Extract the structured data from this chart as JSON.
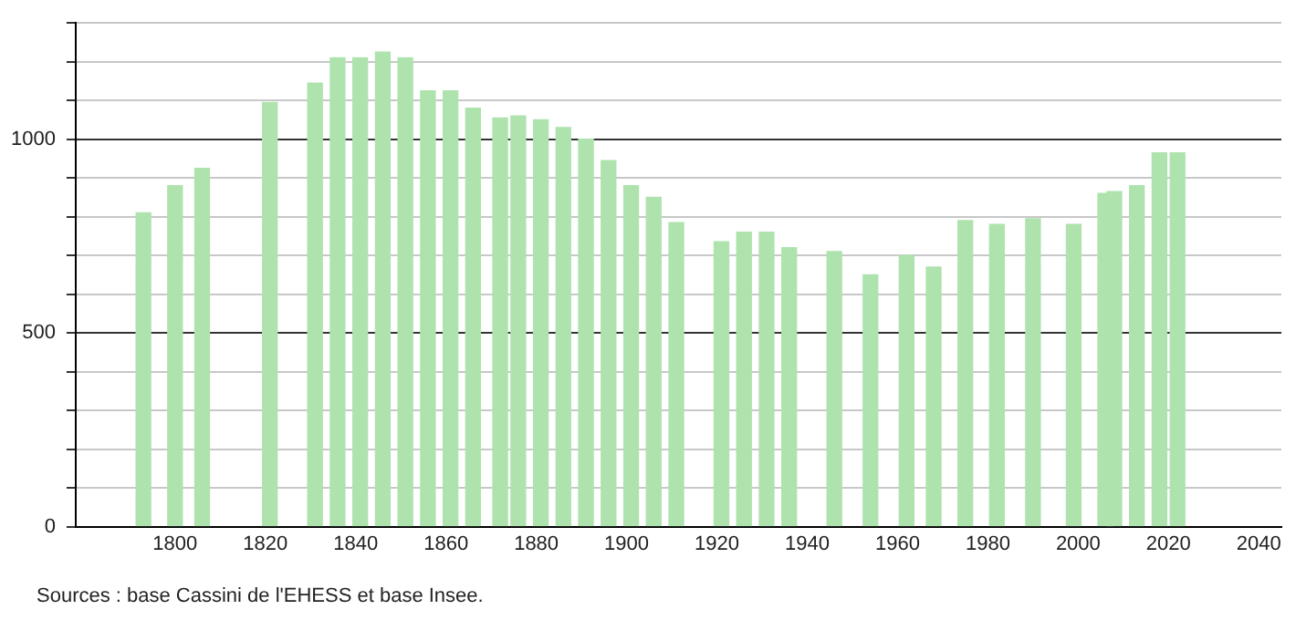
{
  "chart_data": {
    "type": "bar",
    "color": "#aee3ae",
    "x": [
      1793,
      1800,
      1806,
      1821,
      1831,
      1836,
      1841,
      1846,
      1851,
      1856,
      1861,
      1866,
      1872,
      1876,
      1881,
      1886,
      1891,
      1896,
      1901,
      1906,
      1911,
      1921,
      1926,
      1931,
      1936,
      1946,
      1954,
      1962,
      1968,
      1975,
      1982,
      1990,
      1999,
      2006,
      2008,
      2013,
      2018,
      2022
    ],
    "values": [
      810,
      880,
      925,
      1095,
      1145,
      1210,
      1210,
      1225,
      1210,
      1125,
      1125,
      1080,
      1055,
      1060,
      1050,
      1030,
      1000,
      945,
      880,
      850,
      785,
      735,
      760,
      760,
      720,
      710,
      650,
      700,
      670,
      790,
      780,
      795,
      780,
      860,
      865,
      880,
      965,
      965
    ],
    "xlim": [
      1778,
      2045
    ],
    "xticks": [
      1800,
      1820,
      1840,
      1860,
      1880,
      1900,
      1920,
      1940,
      1960,
      1980,
      2000,
      2020,
      2040
    ],
    "ylim": [
      0,
      1300
    ],
    "yticks": [
      0,
      {
        "value": 100,
        "label": null
      },
      {
        "value": 200,
        "label": null
      },
      {
        "value": 300,
        "label": null
      },
      {
        "value": 400,
        "label": null
      },
      500,
      {
        "value": 600,
        "label": null
      },
      {
        "value": 700,
        "label": null
      },
      {
        "value": 800,
        "label": null
      },
      {
        "value": 900,
        "label": null
      },
      1000,
      {
        "value": 1100,
        "label": null
      },
      {
        "value": 1200,
        "label": null
      },
      {
        "value": 1300,
        "label": null
      }
    ],
    "grid": "y",
    "legend": false,
    "annotations": [
      "Sources : base Cassini de l'EHESS et base Insee."
    ]
  }
}
